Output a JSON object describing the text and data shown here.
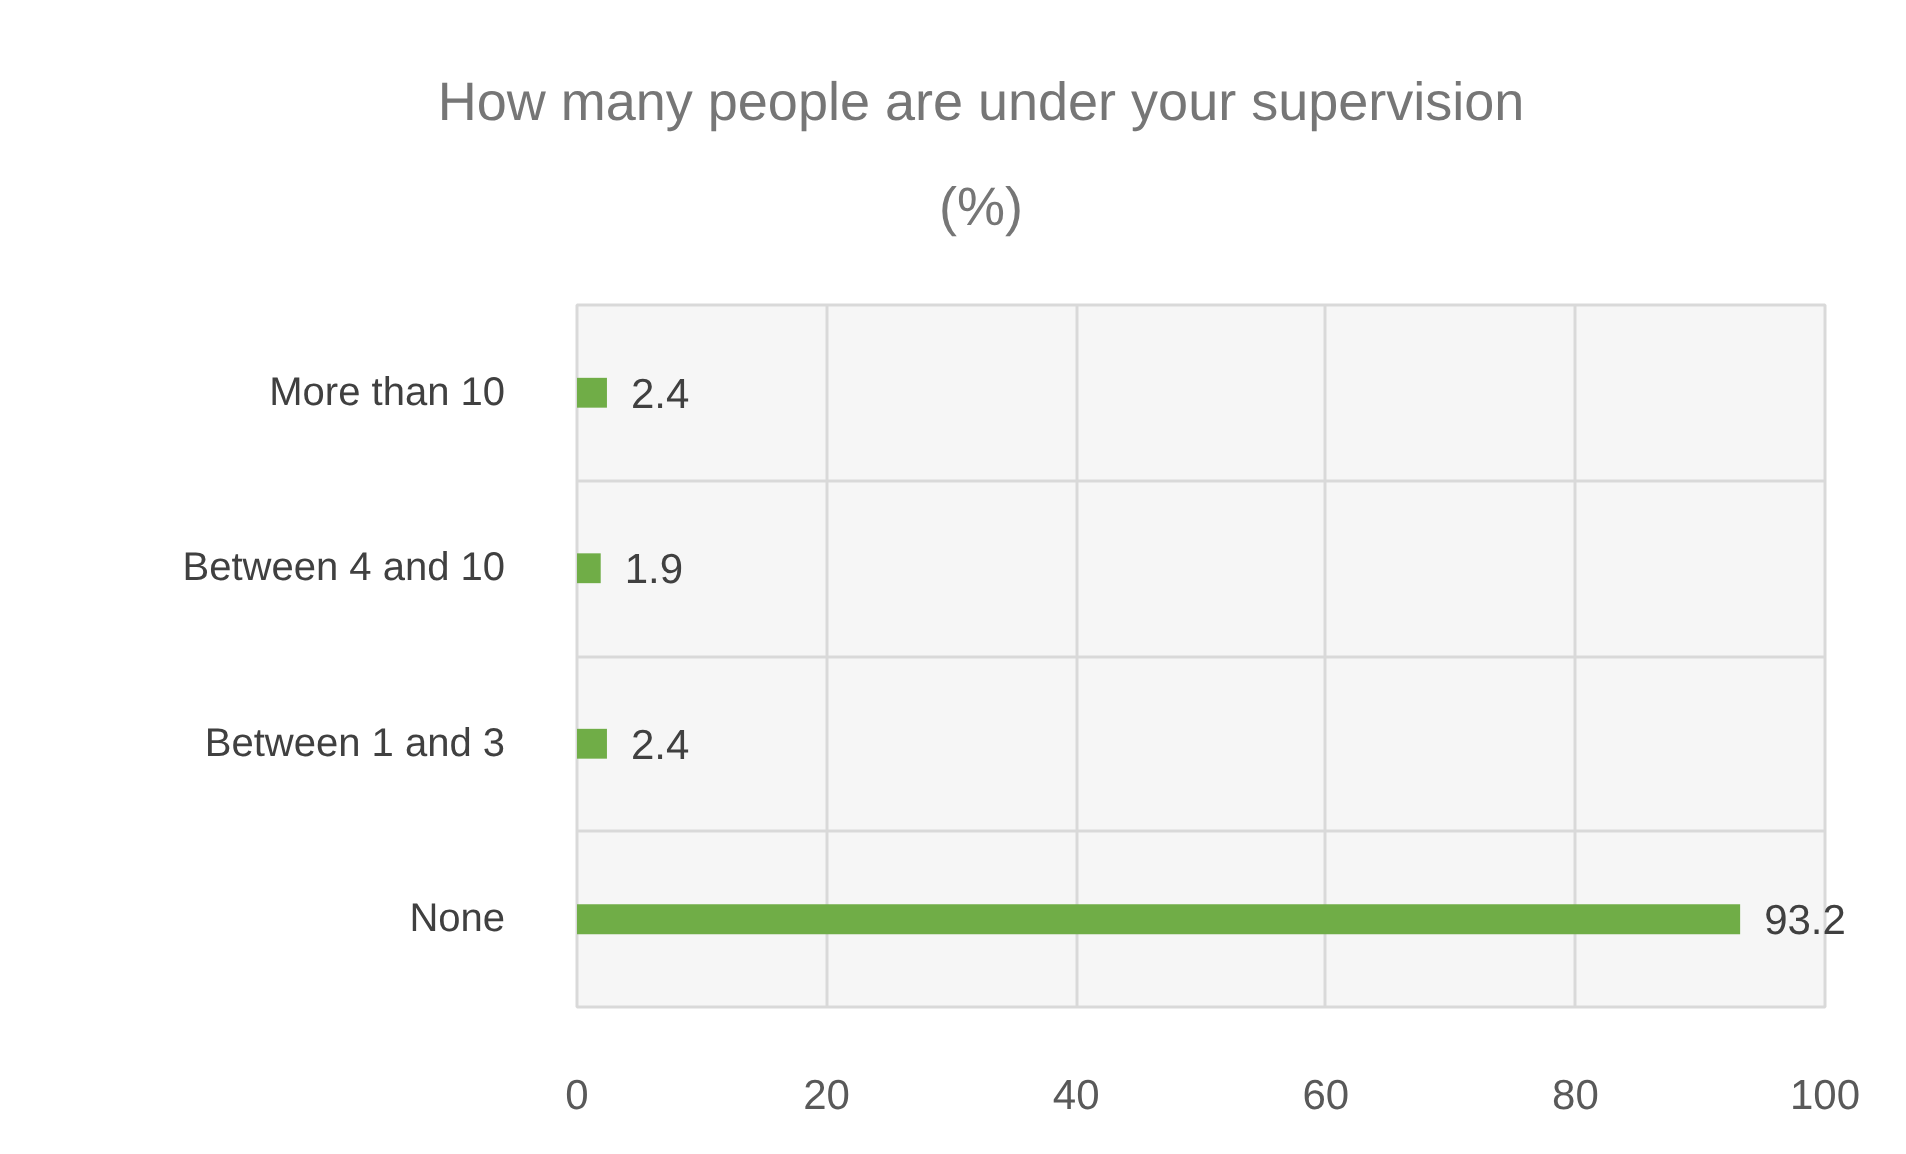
{
  "chart_data": {
    "type": "bar",
    "orientation": "horizontal",
    "title": "How many people are under your supervision\n(%)",
    "categories": [
      "More than 10",
      "Between 4 and 10",
      "Between 1 and 3",
      "None"
    ],
    "values": [
      2.4,
      1.9,
      2.4,
      93.2
    ],
    "color": "#70ad47",
    "xlim": [
      0,
      100
    ],
    "xticks": [
      0,
      20,
      40,
      60,
      80,
      100
    ],
    "grid": true,
    "data_labels": true
  }
}
